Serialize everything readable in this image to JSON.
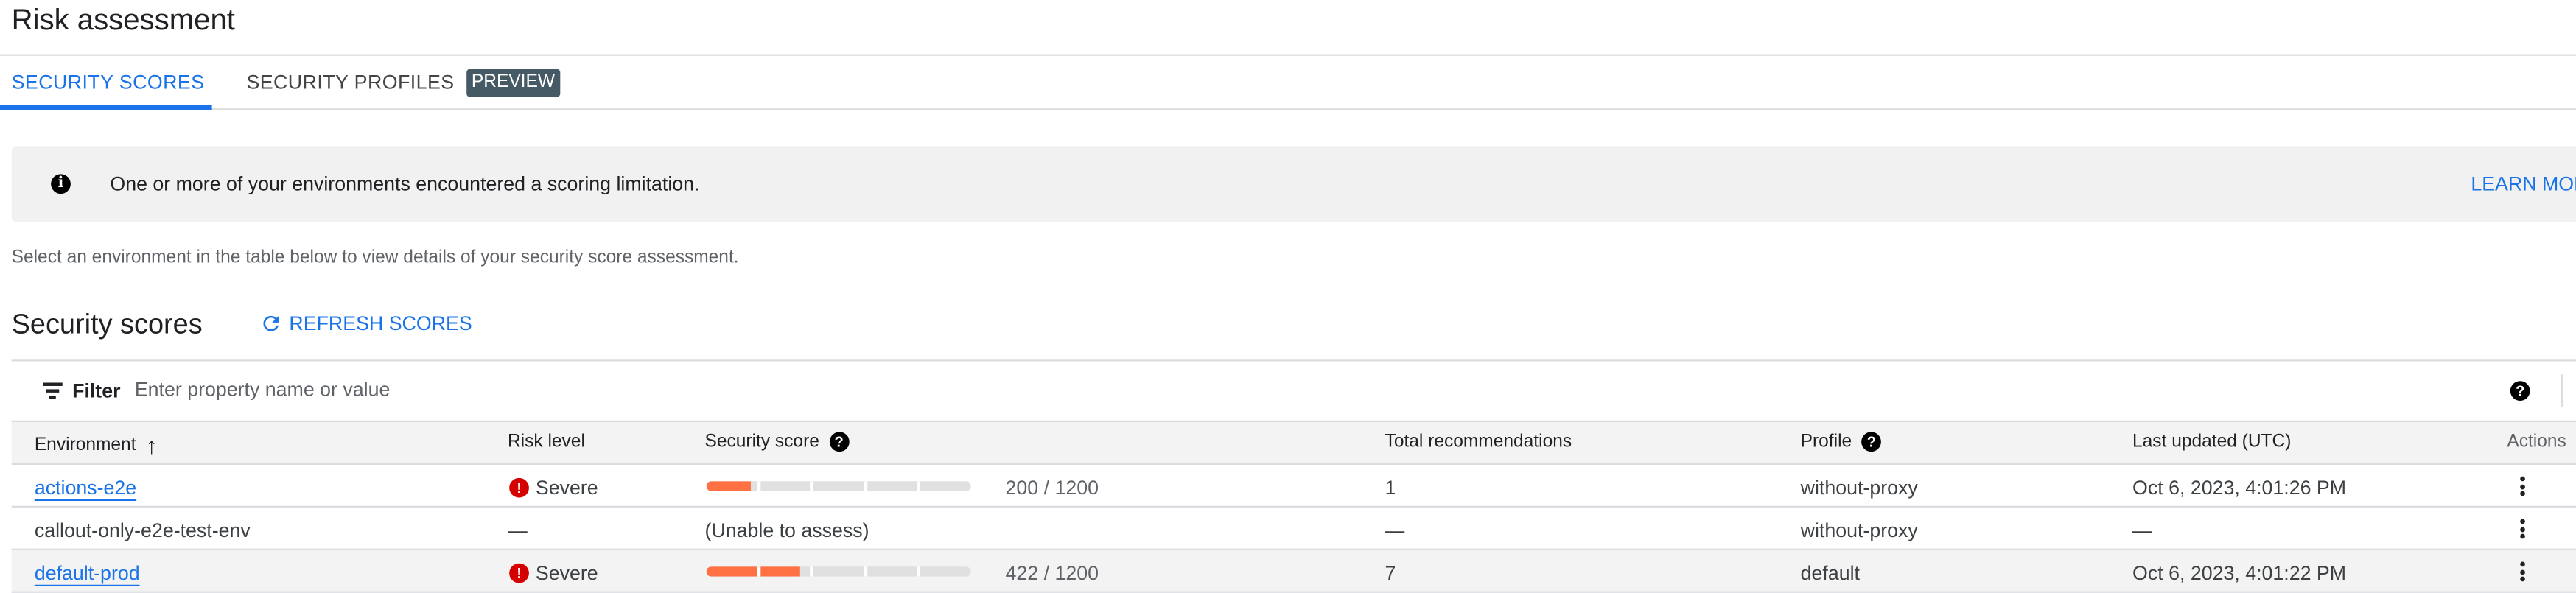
{
  "page": {
    "title": "Risk assessment"
  },
  "tabs": [
    {
      "label": "SECURITY SCORES",
      "active": true
    },
    {
      "label": "SECURITY PROFILES",
      "active": false
    }
  ],
  "preview_badge": "PREVIEW",
  "banner": {
    "icon": "info-icon",
    "text": "One or more of your environments encountered a scoring limitation.",
    "action": "LEARN MORE"
  },
  "description": "Select an environment in the table below to view details of your security score assessment.",
  "section": {
    "title": "Security scores",
    "refresh_label": "REFRESH SCORES"
  },
  "filter": {
    "label": "Filter",
    "placeholder": "Enter property name or value",
    "value": ""
  },
  "table": {
    "columns": [
      "Environment",
      "Risk level",
      "Security score",
      "Total recommendations",
      "Profile",
      "Last updated (UTC)",
      "Actions"
    ],
    "sort": {
      "column": "Environment",
      "direction": "ascending"
    },
    "rows": [
      {
        "environment": "actions-e2e",
        "is_link": true,
        "risk": "Severe",
        "score_text": "200 / 1200",
        "score": 200,
        "max": 1200,
        "total": "1",
        "profile": "without-proxy",
        "updated": "Oct 6, 2023, 4:01:26 PM"
      },
      {
        "environment": "callout-only-e2e-test-env",
        "is_link": false,
        "risk": "—",
        "score_text": "(Unable to assess)",
        "score": null,
        "max": 1200,
        "total": "—",
        "profile": "without-proxy",
        "updated": "—"
      },
      {
        "environment": "default-prod",
        "is_link": true,
        "risk": "Severe",
        "score_text": "422 / 1200",
        "score": 422,
        "max": 1200,
        "total": "7",
        "profile": "default",
        "updated": "Oct 6, 2023, 4:01:22 PM"
      }
    ]
  },
  "colors": {
    "accent": "#1a73e8",
    "severe": "#d50000",
    "score_fill": "#ff7043",
    "score_track": "#e0e0e0",
    "preview_badge": "#455a64"
  }
}
